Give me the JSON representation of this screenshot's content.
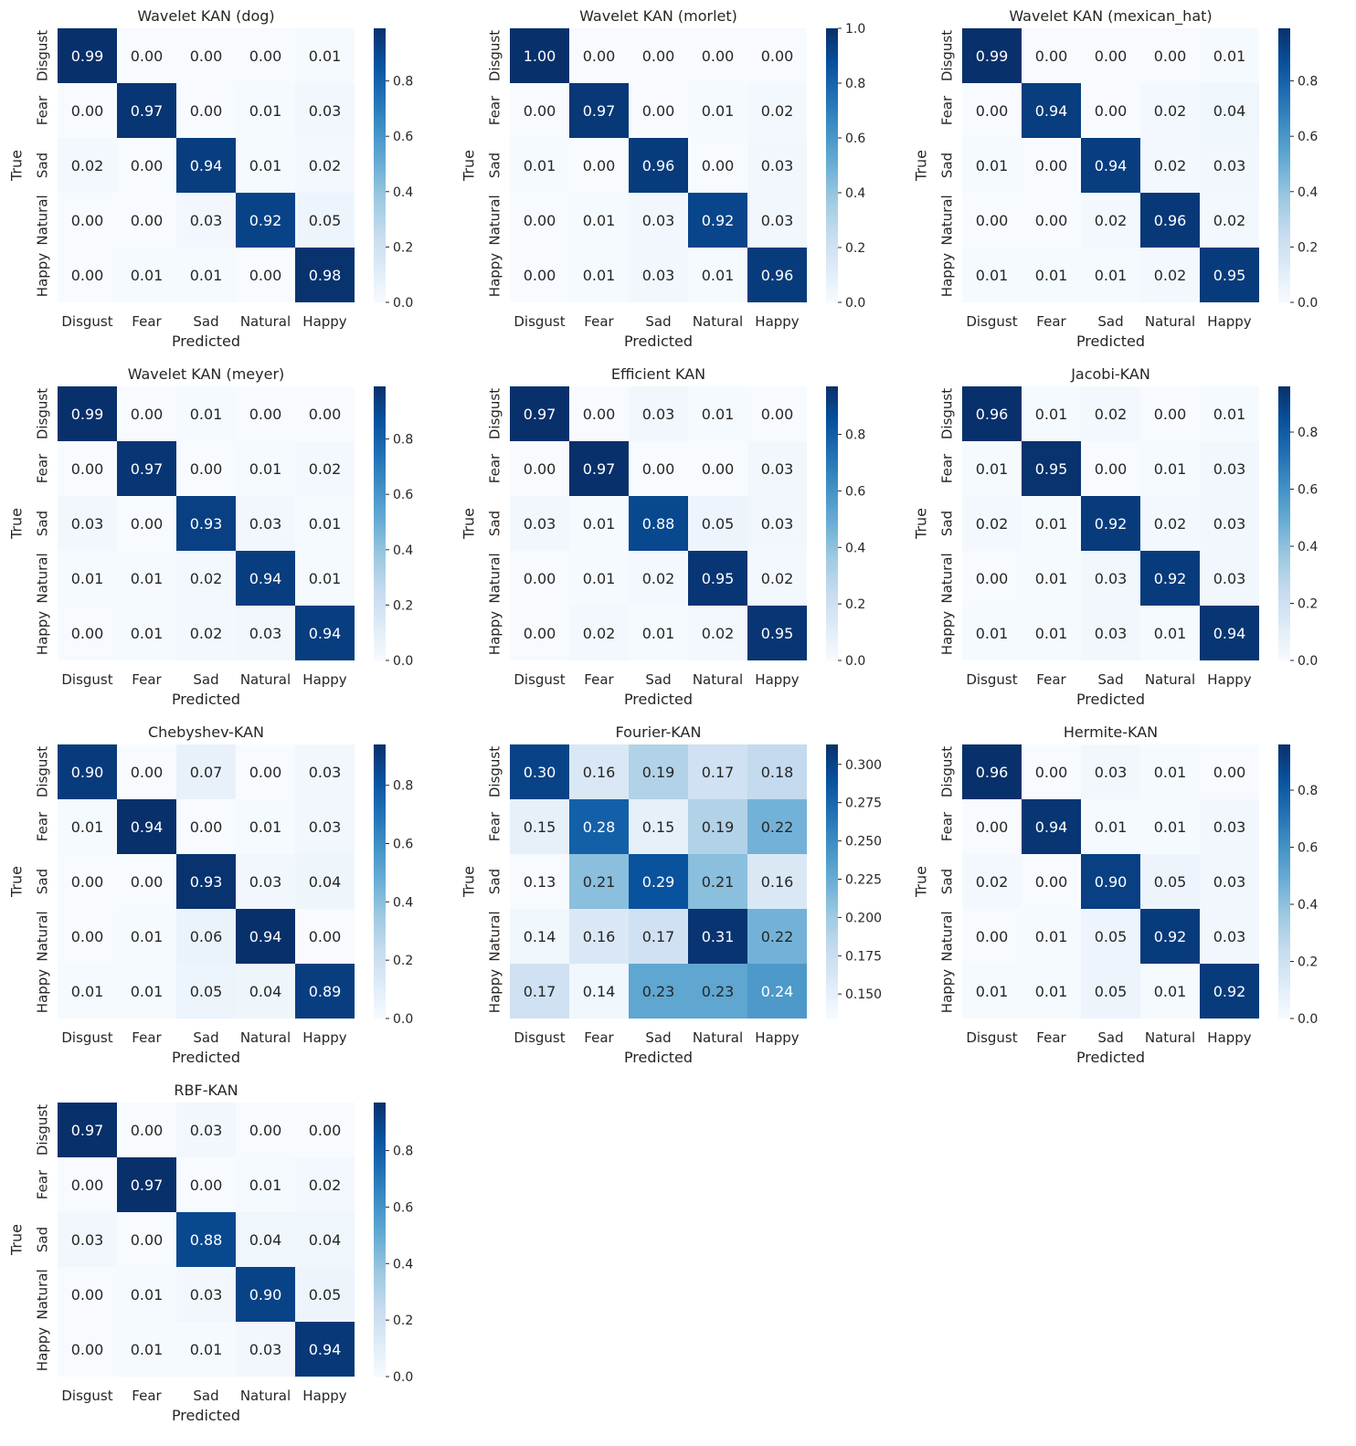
{
  "colormap": {
    "name": "Blues",
    "stops": [
      "#f7fbff",
      "#deebf7",
      "#c6dbef",
      "#9ecae1",
      "#6baed6",
      "#4292c6",
      "#2171b5",
      "#08519c",
      "#08306b"
    ]
  },
  "chart_data": [
    {
      "type": "heatmap",
      "title": "Wavelet KAN (dog)",
      "xlabel": "Predicted",
      "ylabel": "True",
      "x_categories": [
        "Disgust",
        "Fear",
        "Sad",
        "Natural",
        "Happy"
      ],
      "y_categories": [
        "Disgust",
        "Fear",
        "Sad",
        "Natural",
        "Happy"
      ],
      "values": [
        [
          0.99,
          0.0,
          0.0,
          0.0,
          0.01
        ],
        [
          0.0,
          0.97,
          0.0,
          0.01,
          0.03
        ],
        [
          0.02,
          0.0,
          0.94,
          0.01,
          0.02
        ],
        [
          0.0,
          0.0,
          0.03,
          0.92,
          0.05
        ],
        [
          0.0,
          0.01,
          0.01,
          0.0,
          0.98
        ]
      ],
      "cell_labels": [
        [
          "0.99",
          "0.00",
          "0.00",
          "0.00",
          "0.01"
        ],
        [
          "0.00",
          "0.97",
          "0.00",
          "0.01",
          "0.03"
        ],
        [
          "0.02",
          "0.00",
          "0.94",
          "0.01",
          "0.02"
        ],
        [
          "0.00",
          "0.00",
          "0.03",
          "0.92",
          "0.05"
        ],
        [
          "0.00",
          "0.01",
          "0.01",
          "0.00",
          "0.98"
        ]
      ],
      "color_range": [
        0.0,
        0.99
      ],
      "colorbar_ticks": [
        0.0,
        0.2,
        0.4,
        0.6,
        0.8
      ],
      "colorbar_tick_labels": [
        "0.0",
        "0.2",
        "0.4",
        "0.6",
        "0.8"
      ]
    },
    {
      "type": "heatmap",
      "title": "Wavelet KAN (morlet)",
      "xlabel": "Predicted",
      "ylabel": "True",
      "x_categories": [
        "Disgust",
        "Fear",
        "Sad",
        "Natural",
        "Happy"
      ],
      "y_categories": [
        "Disgust",
        "Fear",
        "Sad",
        "Natural",
        "Happy"
      ],
      "values": [
        [
          1.0,
          0.0,
          0.0,
          0.0,
          0.0
        ],
        [
          0.0,
          0.97,
          0.0,
          0.01,
          0.02
        ],
        [
          0.01,
          0.0,
          0.96,
          0.0,
          0.03
        ],
        [
          0.0,
          0.01,
          0.03,
          0.92,
          0.03
        ],
        [
          0.0,
          0.01,
          0.03,
          0.01,
          0.96
        ]
      ],
      "cell_labels": [
        [
          "1.00",
          "0.00",
          "0.00",
          "0.00",
          "0.00"
        ],
        [
          "0.00",
          "0.97",
          "0.00",
          "0.01",
          "0.02"
        ],
        [
          "0.01",
          "0.00",
          "0.96",
          "0.00",
          "0.03"
        ],
        [
          "0.00",
          "0.01",
          "0.03",
          "0.92",
          "0.03"
        ],
        [
          "0.00",
          "0.01",
          "0.03",
          "0.01",
          "0.96"
        ]
      ],
      "color_range": [
        0.0,
        1.0
      ],
      "colorbar_ticks": [
        0.0,
        0.2,
        0.4,
        0.6,
        0.8,
        1.0
      ],
      "colorbar_tick_labels": [
        "0.0",
        "0.2",
        "0.4",
        "0.6",
        "0.8",
        "1.0"
      ]
    },
    {
      "type": "heatmap",
      "title": "Wavelet KAN (mexican_hat)",
      "xlabel": "Predicted",
      "ylabel": "True",
      "x_categories": [
        "Disgust",
        "Fear",
        "Sad",
        "Natural",
        "Happy"
      ],
      "y_categories": [
        "Disgust",
        "Fear",
        "Sad",
        "Natural",
        "Happy"
      ],
      "values": [
        [
          0.99,
          0.0,
          0.0,
          0.0,
          0.01
        ],
        [
          0.0,
          0.94,
          0.0,
          0.02,
          0.04
        ],
        [
          0.01,
          0.0,
          0.94,
          0.02,
          0.03
        ],
        [
          0.0,
          0.0,
          0.02,
          0.96,
          0.02
        ],
        [
          0.01,
          0.01,
          0.01,
          0.02,
          0.95
        ]
      ],
      "cell_labels": [
        [
          "0.99",
          "0.00",
          "0.00",
          "0.00",
          "0.01"
        ],
        [
          "0.00",
          "0.94",
          "0.00",
          "0.02",
          "0.04"
        ],
        [
          "0.01",
          "0.00",
          "0.94",
          "0.02",
          "0.03"
        ],
        [
          "0.00",
          "0.00",
          "0.02",
          "0.96",
          "0.02"
        ],
        [
          "0.01",
          "0.01",
          "0.01",
          "0.02",
          "0.95"
        ]
      ],
      "color_range": [
        0.0,
        0.99
      ],
      "colorbar_ticks": [
        0.0,
        0.2,
        0.4,
        0.6,
        0.8
      ],
      "colorbar_tick_labels": [
        "0.0",
        "0.2",
        "0.4",
        "0.6",
        "0.8"
      ]
    },
    {
      "type": "heatmap",
      "title": "Wavelet KAN (meyer)",
      "xlabel": "Predicted",
      "ylabel": "True",
      "x_categories": [
        "Disgust",
        "Fear",
        "Sad",
        "Natural",
        "Happy"
      ],
      "y_categories": [
        "Disgust",
        "Fear",
        "Sad",
        "Natural",
        "Happy"
      ],
      "values": [
        [
          0.99,
          0.0,
          0.01,
          0.0,
          0.0
        ],
        [
          0.0,
          0.97,
          0.0,
          0.01,
          0.02
        ],
        [
          0.03,
          0.0,
          0.93,
          0.03,
          0.01
        ],
        [
          0.01,
          0.01,
          0.02,
          0.94,
          0.01
        ],
        [
          0.0,
          0.01,
          0.02,
          0.03,
          0.94
        ]
      ],
      "cell_labels": [
        [
          "0.99",
          "0.00",
          "0.01",
          "0.00",
          "0.00"
        ],
        [
          "0.00",
          "0.97",
          "0.00",
          "0.01",
          "0.02"
        ],
        [
          "0.03",
          "0.00",
          "0.93",
          "0.03",
          "0.01"
        ],
        [
          "0.01",
          "0.01",
          "0.02",
          "0.94",
          "0.01"
        ],
        [
          "0.00",
          "0.01",
          "0.02",
          "0.03",
          "0.94"
        ]
      ],
      "color_range": [
        0.0,
        0.99
      ],
      "colorbar_ticks": [
        0.0,
        0.2,
        0.4,
        0.6,
        0.8
      ],
      "colorbar_tick_labels": [
        "0.0",
        "0.2",
        "0.4",
        "0.6",
        "0.8"
      ]
    },
    {
      "type": "heatmap",
      "title": "Efficient KAN",
      "xlabel": "Predicted",
      "ylabel": "True",
      "x_categories": [
        "Disgust",
        "Fear",
        "Sad",
        "Natural",
        "Happy"
      ],
      "y_categories": [
        "Disgust",
        "Fear",
        "Sad",
        "Natural",
        "Happy"
      ],
      "values": [
        [
          0.97,
          0.0,
          0.03,
          0.01,
          0.0
        ],
        [
          0.0,
          0.97,
          0.0,
          0.0,
          0.03
        ],
        [
          0.03,
          0.01,
          0.88,
          0.05,
          0.03
        ],
        [
          0.0,
          0.01,
          0.02,
          0.95,
          0.02
        ],
        [
          0.0,
          0.02,
          0.01,
          0.02,
          0.95
        ]
      ],
      "cell_labels": [
        [
          "0.97",
          "0.00",
          "0.03",
          "0.01",
          "0.00"
        ],
        [
          "0.00",
          "0.97",
          "0.00",
          "0.00",
          "0.03"
        ],
        [
          "0.03",
          "0.01",
          "0.88",
          "0.05",
          "0.03"
        ],
        [
          "0.00",
          "0.01",
          "0.02",
          "0.95",
          "0.02"
        ],
        [
          "0.00",
          "0.02",
          "0.01",
          "0.02",
          "0.95"
        ]
      ],
      "color_range": [
        0.0,
        0.97
      ],
      "colorbar_ticks": [
        0.0,
        0.2,
        0.4,
        0.6,
        0.8
      ],
      "colorbar_tick_labels": [
        "0.0",
        "0.2",
        "0.4",
        "0.6",
        "0.8"
      ]
    },
    {
      "type": "heatmap",
      "title": "Jacobi-KAN",
      "xlabel": "Predicted",
      "ylabel": "True",
      "x_categories": [
        "Disgust",
        "Fear",
        "Sad",
        "Natural",
        "Happy"
      ],
      "y_categories": [
        "Disgust",
        "Fear",
        "Sad",
        "Natural",
        "Happy"
      ],
      "values": [
        [
          0.96,
          0.01,
          0.02,
          0.0,
          0.01
        ],
        [
          0.01,
          0.95,
          0.0,
          0.01,
          0.03
        ],
        [
          0.02,
          0.01,
          0.92,
          0.02,
          0.03
        ],
        [
          0.0,
          0.01,
          0.03,
          0.92,
          0.03
        ],
        [
          0.01,
          0.01,
          0.03,
          0.01,
          0.94
        ]
      ],
      "cell_labels": [
        [
          "0.96",
          "0.01",
          "0.02",
          "0.00",
          "0.01"
        ],
        [
          "0.01",
          "0.95",
          "0.00",
          "0.01",
          "0.03"
        ],
        [
          "0.02",
          "0.01",
          "0.92",
          "0.02",
          "0.03"
        ],
        [
          "0.00",
          "0.01",
          "0.03",
          "0.92",
          "0.03"
        ],
        [
          "0.01",
          "0.01",
          "0.03",
          "0.01",
          "0.94"
        ]
      ],
      "color_range": [
        0.0,
        0.96
      ],
      "colorbar_ticks": [
        0.0,
        0.2,
        0.4,
        0.6,
        0.8
      ],
      "colorbar_tick_labels": [
        "0.0",
        "0.2",
        "0.4",
        "0.6",
        "0.8"
      ]
    },
    {
      "type": "heatmap",
      "title": "Chebyshev-KAN",
      "xlabel": "Predicted",
      "ylabel": "True",
      "x_categories": [
        "Disgust",
        "Fear",
        "Sad",
        "Natural",
        "Happy"
      ],
      "y_categories": [
        "Disgust",
        "Fear",
        "Sad",
        "Natural",
        "Happy"
      ],
      "values": [
        [
          0.9,
          0.0,
          0.07,
          0.0,
          0.03
        ],
        [
          0.01,
          0.94,
          0.0,
          0.01,
          0.03
        ],
        [
          0.0,
          0.0,
          0.93,
          0.03,
          0.04
        ],
        [
          0.0,
          0.01,
          0.06,
          0.94,
          0.0
        ],
        [
          0.01,
          0.01,
          0.05,
          0.04,
          0.89
        ]
      ],
      "cell_labels": [
        [
          "0.90",
          "0.00",
          "0.07",
          "0.00",
          "0.03"
        ],
        [
          "0.01",
          "0.94",
          "0.00",
          "0.01",
          "0.03"
        ],
        [
          "0.00",
          "0.00",
          "0.93",
          "0.03",
          "0.04"
        ],
        [
          "0.00",
          "0.01",
          "0.06",
          "0.94",
          "0.00"
        ],
        [
          "0.01",
          "0.01",
          "0.05",
          "0.04",
          "0.89"
        ]
      ],
      "color_range": [
        0.0,
        0.94
      ],
      "colorbar_ticks": [
        0.0,
        0.2,
        0.4,
        0.6,
        0.8
      ],
      "colorbar_tick_labels": [
        "0.0",
        "0.2",
        "0.4",
        "0.6",
        "0.8"
      ]
    },
    {
      "type": "heatmap",
      "title": "Fourier-KAN",
      "xlabel": "Predicted",
      "ylabel": "True",
      "x_categories": [
        "Disgust",
        "Fear",
        "Sad",
        "Natural",
        "Happy"
      ],
      "y_categories": [
        "Disgust",
        "Fear",
        "Sad",
        "Natural",
        "Happy"
      ],
      "values": [
        [
          0.3,
          0.16,
          0.19,
          0.17,
          0.18
        ],
        [
          0.15,
          0.28,
          0.15,
          0.19,
          0.22
        ],
        [
          0.13,
          0.21,
          0.29,
          0.21,
          0.16
        ],
        [
          0.14,
          0.16,
          0.17,
          0.31,
          0.22
        ],
        [
          0.17,
          0.14,
          0.23,
          0.23,
          0.24
        ]
      ],
      "cell_labels": [
        [
          "0.30",
          "0.16",
          "0.19",
          "0.17",
          "0.18"
        ],
        [
          "0.15",
          "0.28",
          "0.15",
          "0.19",
          "0.22"
        ],
        [
          "0.13",
          "0.21",
          "0.29",
          "0.21",
          "0.16"
        ],
        [
          "0.14",
          "0.16",
          "0.17",
          "0.31",
          "0.22"
        ],
        [
          "0.17",
          "0.14",
          "0.23",
          "0.23",
          "0.24"
        ]
      ],
      "color_range": [
        0.134,
        0.313
      ],
      "colorbar_ticks": [
        0.15,
        0.175,
        0.2,
        0.225,
        0.25,
        0.275,
        0.3
      ],
      "colorbar_tick_labels": [
        "0.150",
        "0.175",
        "0.200",
        "0.225",
        "0.250",
        "0.275",
        "0.300"
      ]
    },
    {
      "type": "heatmap",
      "title": "Hermite-KAN",
      "xlabel": "Predicted",
      "ylabel": "True",
      "x_categories": [
        "Disgust",
        "Fear",
        "Sad",
        "Natural",
        "Happy"
      ],
      "y_categories": [
        "Disgust",
        "Fear",
        "Sad",
        "Natural",
        "Happy"
      ],
      "values": [
        [
          0.96,
          0.0,
          0.03,
          0.01,
          0.0
        ],
        [
          0.0,
          0.94,
          0.01,
          0.01,
          0.03
        ],
        [
          0.02,
          0.0,
          0.9,
          0.05,
          0.03
        ],
        [
          0.0,
          0.01,
          0.05,
          0.92,
          0.03
        ],
        [
          0.01,
          0.01,
          0.05,
          0.01,
          0.92
        ]
      ],
      "cell_labels": [
        [
          "0.96",
          "0.00",
          "0.03",
          "0.01",
          "0.00"
        ],
        [
          "0.00",
          "0.94",
          "0.01",
          "0.01",
          "0.03"
        ],
        [
          "0.02",
          "0.00",
          "0.90",
          "0.05",
          "0.03"
        ],
        [
          "0.00",
          "0.01",
          "0.05",
          "0.92",
          "0.03"
        ],
        [
          "0.01",
          "0.01",
          "0.05",
          "0.01",
          "0.92"
        ]
      ],
      "color_range": [
        0.0,
        0.96
      ],
      "colorbar_ticks": [
        0.0,
        0.2,
        0.4,
        0.6,
        0.8
      ],
      "colorbar_tick_labels": [
        "0.0",
        "0.2",
        "0.4",
        "0.6",
        "0.8"
      ]
    },
    {
      "type": "heatmap",
      "title": "RBF-KAN",
      "xlabel": "Predicted",
      "ylabel": "True",
      "x_categories": [
        "Disgust",
        "Fear",
        "Sad",
        "Natural",
        "Happy"
      ],
      "y_categories": [
        "Disgust",
        "Fear",
        "Sad",
        "Natural",
        "Happy"
      ],
      "values": [
        [
          0.97,
          0.0,
          0.03,
          0.0,
          0.0
        ],
        [
          0.0,
          0.97,
          0.0,
          0.01,
          0.02
        ],
        [
          0.03,
          0.0,
          0.88,
          0.04,
          0.04
        ],
        [
          0.0,
          0.01,
          0.03,
          0.9,
          0.05
        ],
        [
          0.0,
          0.01,
          0.01,
          0.03,
          0.94
        ]
      ],
      "cell_labels": [
        [
          "0.97",
          "0.00",
          "0.03",
          "0.00",
          "0.00"
        ],
        [
          "0.00",
          "0.97",
          "0.00",
          "0.01",
          "0.02"
        ],
        [
          "0.03",
          "0.00",
          "0.88",
          "0.04",
          "0.04"
        ],
        [
          "0.00",
          "0.01",
          "0.03",
          "0.90",
          "0.05"
        ],
        [
          "0.00",
          "0.01",
          "0.01",
          "0.03",
          "0.94"
        ]
      ],
      "color_range": [
        0.0,
        0.97
      ],
      "colorbar_ticks": [
        0.0,
        0.2,
        0.4,
        0.6,
        0.8
      ],
      "colorbar_tick_labels": [
        "0.0",
        "0.2",
        "0.4",
        "0.6",
        "0.8"
      ]
    }
  ]
}
